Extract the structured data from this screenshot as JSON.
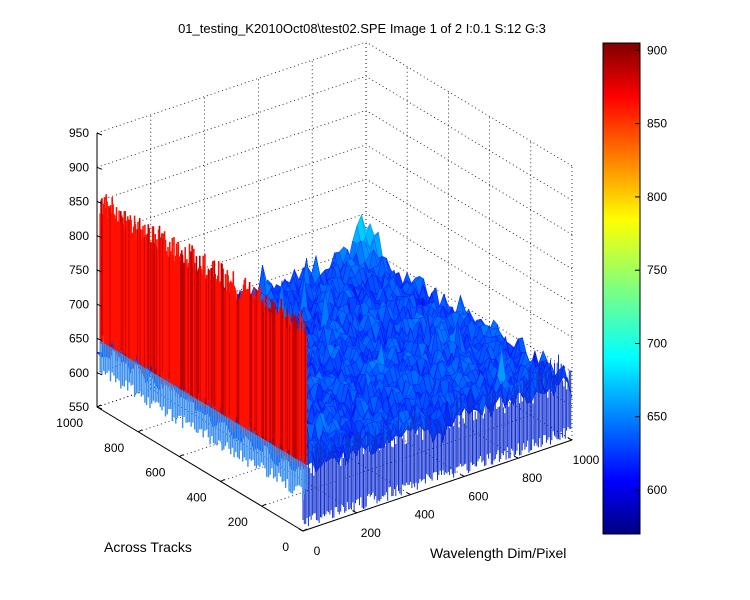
{
  "chart_data": {
    "type": "surface",
    "title": "01_testing_K2010Oct08\\test02.SPE  Image 1 of 2  I:0.1  S:12  G:3",
    "xlabel": "Wavelength Dim/Pixel",
    "ylabel": "Across Tracks",
    "zlabel": "",
    "xlim": [
      0,
      1000
    ],
    "ylim": [
      0,
      1000
    ],
    "zlim": [
      550,
      950
    ],
    "x_ticks": [
      "0",
      "200",
      "400",
      "600",
      "800",
      "1000"
    ],
    "y_ticks": [
      "0",
      "200",
      "400",
      "600",
      "800",
      "1000"
    ],
    "z_ticks": [
      "550",
      "600",
      "650",
      "700",
      "750",
      "800",
      "850",
      "900",
      "950"
    ],
    "colorbar": {
      "colormap": "jet",
      "range": [
        570,
        905
      ],
      "ticks": [
        "600",
        "650",
        "700",
        "750",
        "800",
        "850",
        "900"
      ]
    },
    "grid": true,
    "surface_regions": [
      {
        "region": "x near 0 (first wavelength column)",
        "approx_min": 630,
        "approx_max": 870,
        "typical": 850
      },
      {
        "region": "remaining pixels",
        "approx_min": 580,
        "approx_max": 700,
        "typical": 640
      },
      {
        "region": "peak near x 1000, y 1000",
        "approx_value": 690
      }
    ]
  }
}
